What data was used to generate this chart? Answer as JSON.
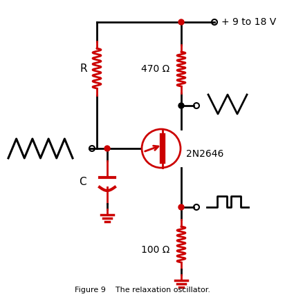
{
  "title": "Figure 9    The relaxation oscillator.",
  "red": "#cc0000",
  "black": "#000000",
  "bg": "#ffffff",
  "figsize": [
    4.12,
    4.33
  ],
  "dpi": 100,
  "label_470": "470 Ω",
  "label_100": "100 Ω",
  "label_R": "R",
  "label_C": "C",
  "label_transistor": "2N2646",
  "label_supply": "+ 9 to 18 V"
}
